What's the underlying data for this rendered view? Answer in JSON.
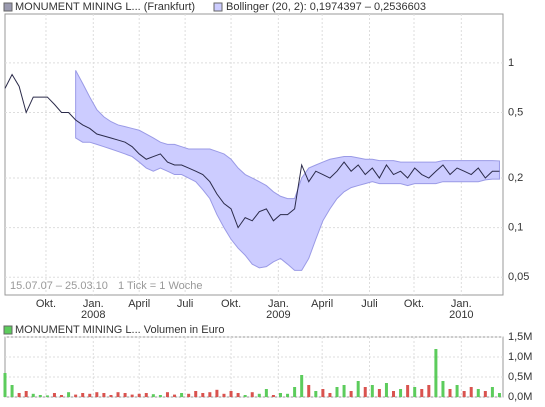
{
  "chart_data": [
    {
      "type": "line",
      "log_scale": true,
      "grid": true,
      "series": [
        {
          "name": "MONUMENT MINING L... (Frankfurt)",
          "color": "#2b2b4a",
          "values": [
            0.7,
            0.85,
            0.72,
            0.5,
            0.62,
            0.62,
            0.62,
            0.56,
            0.5,
            0.5,
            0.45,
            0.42,
            0.4,
            0.37,
            0.36,
            0.35,
            0.34,
            0.33,
            0.31,
            0.28,
            0.26,
            0.27,
            0.28,
            0.25,
            0.24,
            0.24,
            0.23,
            0.22,
            0.21,
            0.19,
            0.16,
            0.14,
            0.13,
            0.1,
            0.115,
            0.11,
            0.125,
            0.13,
            0.11,
            0.12,
            0.12,
            0.13,
            0.24,
            0.19,
            0.22,
            0.21,
            0.2,
            0.22,
            0.25,
            0.22,
            0.24,
            0.21,
            0.23,
            0.2,
            0.24,
            0.21,
            0.22,
            0.2,
            0.23,
            0.21,
            0.2,
            0.22,
            0.24,
            0.21,
            0.23,
            0.22,
            0.21,
            0.23,
            0.2,
            0.22,
            0.22
          ]
        }
      ],
      "band": {
        "name": "Bollinger (20, 2): 0,1974397 – 0,2536603",
        "color": "#ccccff",
        "edge": "#9a9ae6",
        "upper": [
          null,
          null,
          null,
          null,
          null,
          null,
          null,
          null,
          null,
          null,
          0.9,
          0.75,
          0.62,
          0.52,
          0.47,
          0.44,
          0.42,
          0.41,
          0.4,
          0.39,
          0.37,
          0.35,
          0.33,
          0.32,
          0.32,
          0.31,
          0.3,
          0.3,
          0.3,
          0.3,
          0.29,
          0.28,
          0.26,
          0.23,
          0.21,
          0.2,
          0.19,
          0.18,
          0.165,
          0.155,
          0.15,
          0.15,
          0.2,
          0.23,
          0.24,
          0.25,
          0.26,
          0.265,
          0.27,
          0.27,
          0.265,
          0.26,
          0.26,
          0.255,
          0.255,
          0.255,
          0.25,
          0.25,
          0.25,
          0.25,
          0.25,
          0.25,
          0.255,
          0.255,
          0.255,
          0.255,
          0.255,
          0.255,
          0.255,
          0.255,
          0.254
        ],
        "lower": [
          null,
          null,
          null,
          null,
          null,
          null,
          null,
          null,
          null,
          null,
          0.35,
          0.33,
          0.33,
          0.32,
          0.31,
          0.3,
          0.29,
          0.28,
          0.27,
          0.25,
          0.23,
          0.22,
          0.23,
          0.22,
          0.21,
          0.21,
          0.2,
          0.19,
          0.17,
          0.15,
          0.12,
          0.1,
          0.085,
          0.075,
          0.068,
          0.06,
          0.057,
          0.058,
          0.062,
          0.065,
          0.06,
          0.055,
          0.055,
          0.065,
          0.085,
          0.11,
          0.13,
          0.15,
          0.165,
          0.175,
          0.18,
          0.185,
          0.19,
          0.185,
          0.185,
          0.185,
          0.185,
          0.18,
          0.185,
          0.185,
          0.185,
          0.185,
          0.19,
          0.19,
          0.19,
          0.19,
          0.19,
          0.19,
          0.195,
          0.197,
          0.197
        ]
      },
      "annotations": [
        "15.07.07 – 25.03.10",
        "1 Tick = 1 Woche"
      ],
      "xlim": [
        0,
        70.5
      ],
      "xticks": [
        {
          "value": 5.8,
          "label": "Okt."
        },
        {
          "value": 12.5,
          "label": "Jan."
        },
        {
          "value": 19.0,
          "label": "April"
        },
        {
          "value": 25.5,
          "label": "Juli"
        },
        {
          "value": 32.0,
          "label": "Okt."
        },
        {
          "value": 38.7,
          "label": "Jan."
        },
        {
          "value": 44.9,
          "label": "April"
        },
        {
          "value": 51.6,
          "label": "Juli"
        },
        {
          "value": 57.9,
          "label": "Okt."
        },
        {
          "value": 64.6,
          "label": "Jan."
        }
      ],
      "year_labels": [
        {
          "value": 12.5,
          "label": "2008"
        },
        {
          "value": 38.7,
          "label": "2009"
        },
        {
          "value": 64.6,
          "label": "2010"
        }
      ],
      "ylim": [
        0.039,
        1.98
      ],
      "yticks": [
        1,
        {
          "value": 0.5,
          "label": "0,5"
        },
        {
          "value": 0.2,
          "label": "0,2"
        },
        {
          "value": 0.1,
          "label": "0,1"
        },
        {
          "value": 0.05,
          "label": "0,05"
        }
      ]
    },
    {
      "type": "bar",
      "grid": true,
      "series": [
        {
          "name": "MONUMENT MINING L... Volumen in Euro",
          "color": "#5ccc5c",
          "down_color": "#d9534f",
          "values": [
            0.6,
            0.3,
            0.1,
            0.15,
            0.08,
            0.05,
            0.04,
            0.1,
            0.05,
            0.12,
            0.06,
            0.1,
            0.08,
            0.12,
            0.1,
            0.05,
            0.12,
            0.1,
            0.06,
            0.08,
            0.1,
            0.07,
            0.05,
            0.12,
            0.06,
            0.1,
            0.08,
            0.15,
            0.1,
            0.12,
            0.18,
            0.08,
            0.15,
            0.1,
            0.05,
            0.12,
            0.08,
            0.2,
            0.05,
            0.1,
            0.08,
            0.25,
            0.55,
            0.3,
            0.15,
            0.2,
            0.1,
            0.25,
            0.3,
            0.15,
            0.4,
            0.25,
            0.3,
            0.2,
            0.35,
            0.15,
            0.2,
            0.3,
            0.25,
            0.2,
            0.3,
            1.2,
            0.4,
            0.2,
            0.3,
            0.15,
            0.25,
            0.2,
            0.15,
            0.25,
            0.1
          ]
        }
      ],
      "xlim": [
        0,
        70.5
      ],
      "ylim": [
        0,
        1.5
      ],
      "yticks": [
        {
          "value": 1.5,
          "label": "1,5M"
        },
        {
          "value": 1.0,
          "label": "1,0M"
        },
        {
          "value": 0.5,
          "label": "0,5M"
        },
        {
          "value": 0,
          "label": "0,0M"
        }
      ]
    }
  ]
}
